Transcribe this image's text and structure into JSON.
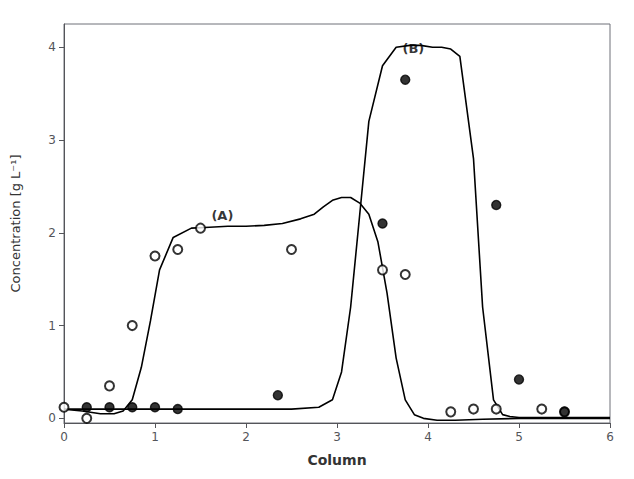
{
  "chart_data": {
    "type": "line",
    "xlabel": "Column",
    "ylabel": "Concentration [g L⁻¹]",
    "xlim": [
      0,
      6
    ],
    "ylim": [
      -0.05,
      4.25
    ],
    "xticks": [
      0,
      1,
      2,
      3,
      4,
      5,
      6
    ],
    "yticks": [
      0,
      1,
      2,
      3,
      4
    ],
    "grid": false,
    "series": [
      {
        "type": "line",
        "color": "#000000",
        "x": [
          0.0,
          0.2,
          0.4,
          0.55,
          0.65,
          0.75,
          0.85,
          0.95,
          1.05,
          1.2,
          1.4,
          1.6,
          1.8,
          2.0,
          2.2,
          2.4,
          2.6,
          2.75,
          2.85,
          2.95,
          3.05,
          3.15,
          3.25,
          3.35,
          3.45,
          3.55,
          3.65,
          3.75,
          3.85,
          3.95,
          4.1,
          4.3,
          4.6,
          5.0,
          5.5,
          6.0
        ],
        "values": [
          0.1,
          0.08,
          0.05,
          0.05,
          0.08,
          0.2,
          0.55,
          1.05,
          1.6,
          1.95,
          2.05,
          2.06,
          2.07,
          2.07,
          2.08,
          2.1,
          2.15,
          2.2,
          2.28,
          2.35,
          2.38,
          2.38,
          2.32,
          2.2,
          1.9,
          1.35,
          0.65,
          0.2,
          0.04,
          0.0,
          -0.02,
          -0.02,
          -0.01,
          0.0,
          0.0,
          0.0
        ]
      },
      {
        "type": "line",
        "color": "#000000",
        "x": [
          0.0,
          0.5,
          1.0,
          1.5,
          2.0,
          2.5,
          2.8,
          2.95,
          3.05,
          3.15,
          3.25,
          3.35,
          3.5,
          3.65,
          3.8,
          3.92,
          4.05,
          4.15,
          4.25,
          4.35,
          4.5,
          4.6,
          4.72,
          4.82,
          4.9,
          5.0,
          5.1,
          5.3,
          5.6,
          6.0
        ],
        "values": [
          0.1,
          0.1,
          0.1,
          0.1,
          0.1,
          0.1,
          0.12,
          0.2,
          0.5,
          1.2,
          2.2,
          3.2,
          3.8,
          4.0,
          4.02,
          4.02,
          4.0,
          4.0,
          3.98,
          3.9,
          2.8,
          1.2,
          0.2,
          0.04,
          0.02,
          0.01,
          0.01,
          0.01,
          0.01,
          0.01
        ]
      },
      {
        "type": "scatter",
        "color": "#000000",
        "marker": "emptyCircle",
        "x": [
          0.0,
          0.25,
          0.5,
          0.75,
          1.0,
          1.25,
          1.5,
          2.5,
          3.5,
          3.75,
          4.25,
          4.5,
          4.75,
          5.25,
          5.5
        ],
        "values": [
          0.12,
          0.0,
          0.35,
          1.0,
          1.75,
          1.82,
          2.05,
          1.82,
          1.6,
          1.55,
          0.07,
          0.1,
          0.1,
          0.1,
          0.07
        ]
      },
      {
        "type": "scatter",
        "color": "#000000",
        "marker": "circle",
        "x": [
          0.25,
          0.5,
          0.75,
          1.0,
          1.25,
          2.35,
          3.5,
          3.75,
          4.75,
          5.0,
          5.5
        ],
        "values": [
          0.12,
          0.12,
          0.12,
          0.12,
          0.1,
          0.25,
          2.1,
          3.65,
          2.3,
          0.42,
          0.07
        ]
      }
    ],
    "annotations": [
      {
        "text": "(A)",
        "x": 1.62,
        "y": 2.12
      },
      {
        "text": "(B)",
        "x": 3.72,
        "y": 3.92
      }
    ]
  }
}
